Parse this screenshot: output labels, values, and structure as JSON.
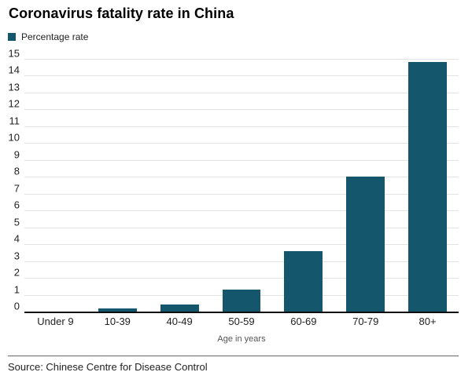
{
  "chart": {
    "title": "Coronavirus fatality rate in China",
    "legend_label": "Percentage rate",
    "xlabel": "Age in years",
    "source": "Source: Chinese Centre for Disease Control"
  },
  "chart_data": {
    "type": "bar",
    "title": "Coronavirus fatality rate in China",
    "series_name": "Percentage rate",
    "categories": [
      "Under 9",
      "10-39",
      "40-49",
      "50-59",
      "60-69",
      "70-79",
      "80+"
    ],
    "values": [
      0,
      0.2,
      0.4,
      1.3,
      3.6,
      8.0,
      14.8
    ],
    "xlabel": "Age in years",
    "ylabel": "",
    "ylim": [
      0,
      15
    ],
    "ytick_step": 1,
    "grid": true,
    "legend_position": "top-left",
    "source": "Source: Chinese Centre for Disease Control"
  },
  "colors": {
    "bar": "#14566b",
    "gridline": "#e3e3e3",
    "baseline": "#0d0d0d",
    "text": "#222222",
    "muted_text": "#555555"
  }
}
